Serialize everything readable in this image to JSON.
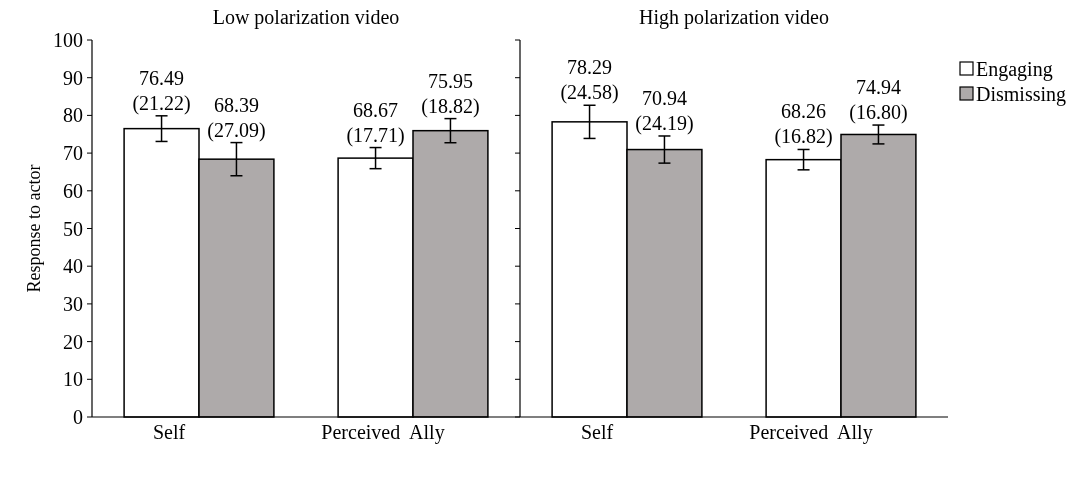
{
  "chart_data": [
    {
      "type": "bar",
      "title": "Low polarization video",
      "ylabel": "Response to actor",
      "categories": [
        "Self",
        "Perceived  Ally"
      ],
      "ylim": [
        0,
        100
      ],
      "yticks": [
        0,
        10,
        20,
        30,
        40,
        50,
        60,
        70,
        80,
        90,
        100
      ],
      "grid": false,
      "legend": false,
      "series": [
        {
          "color": "#ffffff",
          "values": [
            76.49,
            68.67
          ],
          "errors": [
            3.4,
            2.8
          ],
          "value_labels": [
            "76.49 (21.22)",
            "68.67 (17.71)"
          ]
        },
        {
          "color": "#aeaaaa",
          "values": [
            68.39,
            75.95
          ],
          "errors": [
            4.4,
            3.2
          ],
          "value_labels": [
            "68.39 (27.09)",
            "75.95 (18.82)"
          ]
        }
      ]
    },
    {
      "type": "bar",
      "title": "High polarization video",
      "categories": [
        "Self",
        "Perceived  Ally"
      ],
      "ylim": [
        0,
        100
      ],
      "yticks": [
        0,
        10,
        20,
        30,
        40,
        50,
        60,
        70,
        80,
        90,
        100
      ],
      "tick_labels": "x",
      "grid": false,
      "legend": "right",
      "series": [
        {
          "name": "Engaging",
          "color": "#ffffff",
          "values": [
            78.29,
            68.26
          ],
          "errors": [
            4.4,
            2.7
          ],
          "value_labels": [
            "78.29 (24.58)",
            "68.26 (16.82)"
          ]
        },
        {
          "name": "Dismissing",
          "color": "#aeaaaa",
          "values": [
            70.94,
            74.94
          ],
          "errors": [
            3.6,
            2.5
          ],
          "value_labels": [
            "70.94 (24.19)",
            "74.94 (16.80)"
          ]
        }
      ]
    }
  ]
}
